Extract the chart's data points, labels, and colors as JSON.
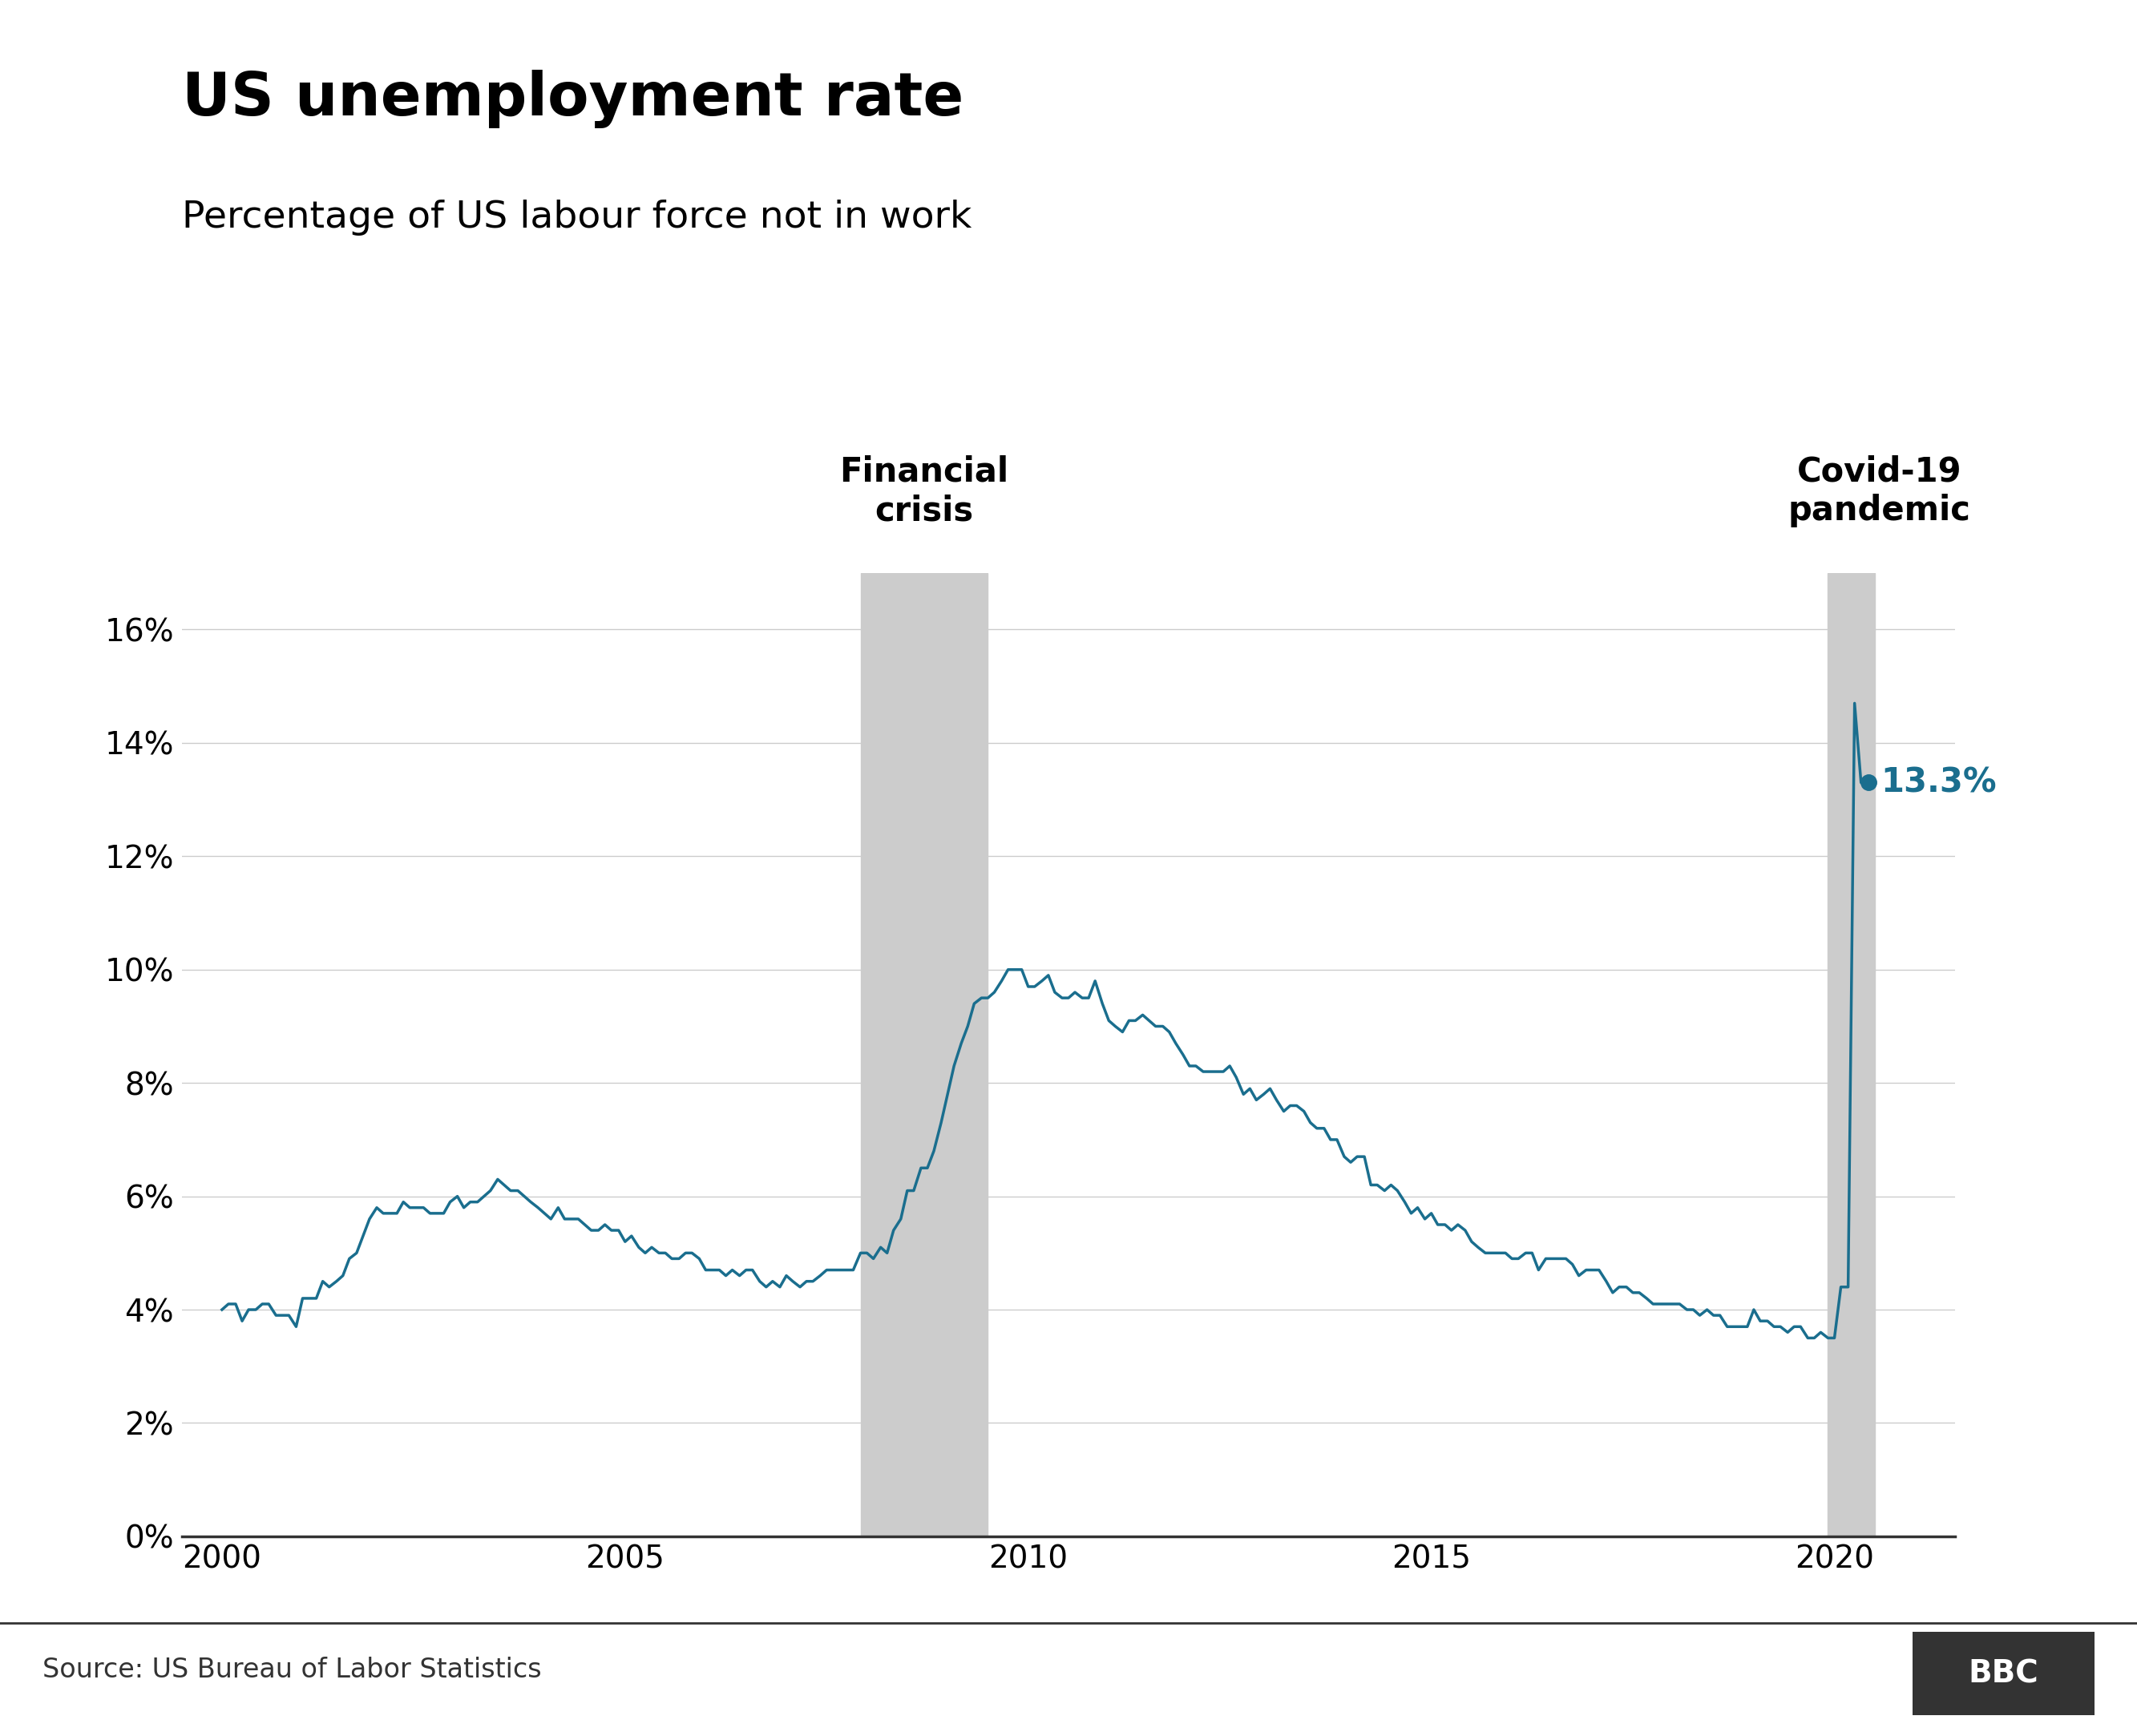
{
  "title": "US unemployment rate",
  "subtitle": "Percentage of US labour force not in work",
  "source": "Source: US Bureau of Labor Statistics",
  "line_color": "#1a6e8e",
  "annotation_color": "#1a6e8e",
  "shading_color": "#cccccc",
  "background_color": "#ffffff",
  "title_fontsize": 54,
  "subtitle_fontsize": 34,
  "annotation_fontsize": 30,
  "tick_fontsize": 28,
  "source_fontsize": 24,
  "financial_crisis_label": "Financial\ncrisis",
  "covid_label": "Covid-19\npandemic",
  "financial_crisis_start": 2007.92,
  "financial_crisis_end": 2009.5,
  "covid_start": 2019.92,
  "covid_end": 2020.5,
  "endpoint_label": "13.3%",
  "ylim": [
    0,
    17
  ],
  "yticks": [
    0,
    2,
    4,
    6,
    8,
    10,
    12,
    14,
    16
  ],
  "xlim": [
    1999.5,
    2021.5
  ],
  "xticks": [
    2000,
    2005,
    2010,
    2015,
    2020
  ],
  "data": {
    "dates": [
      2000.0,
      2000.08,
      2000.17,
      2000.25,
      2000.33,
      2000.42,
      2000.5,
      2000.58,
      2000.67,
      2000.75,
      2000.83,
      2000.92,
      2001.0,
      2001.08,
      2001.17,
      2001.25,
      2001.33,
      2001.42,
      2001.5,
      2001.58,
      2001.67,
      2001.75,
      2001.83,
      2001.92,
      2002.0,
      2002.08,
      2002.17,
      2002.25,
      2002.33,
      2002.42,
      2002.5,
      2002.58,
      2002.67,
      2002.75,
      2002.83,
      2002.92,
      2003.0,
      2003.08,
      2003.17,
      2003.25,
      2003.33,
      2003.42,
      2003.5,
      2003.58,
      2003.67,
      2003.75,
      2003.83,
      2003.92,
      2004.0,
      2004.08,
      2004.17,
      2004.25,
      2004.33,
      2004.42,
      2004.5,
      2004.58,
      2004.67,
      2004.75,
      2004.83,
      2004.92,
      2005.0,
      2005.08,
      2005.17,
      2005.25,
      2005.33,
      2005.42,
      2005.5,
      2005.58,
      2005.67,
      2005.75,
      2005.83,
      2005.92,
      2006.0,
      2006.08,
      2006.17,
      2006.25,
      2006.33,
      2006.42,
      2006.5,
      2006.58,
      2006.67,
      2006.75,
      2006.83,
      2006.92,
      2007.0,
      2007.08,
      2007.17,
      2007.25,
      2007.33,
      2007.42,
      2007.5,
      2007.58,
      2007.67,
      2007.75,
      2007.83,
      2007.92,
      2008.0,
      2008.08,
      2008.17,
      2008.25,
      2008.33,
      2008.42,
      2008.5,
      2008.58,
      2008.67,
      2008.75,
      2008.83,
      2008.92,
      2009.0,
      2009.08,
      2009.17,
      2009.25,
      2009.33,
      2009.42,
      2009.5,
      2009.58,
      2009.67,
      2009.75,
      2009.83,
      2009.92,
      2010.0,
      2010.08,
      2010.17,
      2010.25,
      2010.33,
      2010.42,
      2010.5,
      2010.58,
      2010.67,
      2010.75,
      2010.83,
      2010.92,
      2011.0,
      2011.08,
      2011.17,
      2011.25,
      2011.33,
      2011.42,
      2011.5,
      2011.58,
      2011.67,
      2011.75,
      2011.83,
      2011.92,
      2012.0,
      2012.08,
      2012.17,
      2012.25,
      2012.33,
      2012.42,
      2012.5,
      2012.58,
      2012.67,
      2012.75,
      2012.83,
      2012.92,
      2013.0,
      2013.08,
      2013.17,
      2013.25,
      2013.33,
      2013.42,
      2013.5,
      2013.58,
      2013.67,
      2013.75,
      2013.83,
      2013.92,
      2014.0,
      2014.08,
      2014.17,
      2014.25,
      2014.33,
      2014.42,
      2014.5,
      2014.58,
      2014.67,
      2014.75,
      2014.83,
      2014.92,
      2015.0,
      2015.08,
      2015.17,
      2015.25,
      2015.33,
      2015.42,
      2015.5,
      2015.58,
      2015.67,
      2015.75,
      2015.83,
      2015.92,
      2016.0,
      2016.08,
      2016.17,
      2016.25,
      2016.33,
      2016.42,
      2016.5,
      2016.58,
      2016.67,
      2016.75,
      2016.83,
      2016.92,
      2017.0,
      2017.08,
      2017.17,
      2017.25,
      2017.33,
      2017.42,
      2017.5,
      2017.58,
      2017.67,
      2017.75,
      2017.83,
      2017.92,
      2018.0,
      2018.08,
      2018.17,
      2018.25,
      2018.33,
      2018.42,
      2018.5,
      2018.58,
      2018.67,
      2018.75,
      2018.83,
      2018.92,
      2019.0,
      2019.08,
      2019.17,
      2019.25,
      2019.33,
      2019.42,
      2019.5,
      2019.58,
      2019.67,
      2019.75,
      2019.83,
      2019.92,
      2020.0,
      2020.08,
      2020.17,
      2020.25,
      2020.33,
      2020.42
    ],
    "values": [
      4.0,
      4.1,
      4.1,
      3.8,
      4.0,
      4.0,
      4.1,
      4.1,
      3.9,
      3.9,
      3.9,
      3.7,
      4.2,
      4.2,
      4.2,
      4.5,
      4.4,
      4.5,
      4.6,
      4.9,
      5.0,
      5.3,
      5.6,
      5.8,
      5.7,
      5.7,
      5.7,
      5.9,
      5.8,
      5.8,
      5.8,
      5.7,
      5.7,
      5.7,
      5.9,
      6.0,
      5.8,
      5.9,
      5.9,
      6.0,
      6.1,
      6.3,
      6.2,
      6.1,
      6.1,
      6.0,
      5.9,
      5.8,
      5.7,
      5.6,
      5.8,
      5.6,
      5.6,
      5.6,
      5.5,
      5.4,
      5.4,
      5.5,
      5.4,
      5.4,
      5.2,
      5.3,
      5.1,
      5.0,
      5.1,
      5.0,
      5.0,
      4.9,
      4.9,
      5.0,
      5.0,
      4.9,
      4.7,
      4.7,
      4.7,
      4.6,
      4.7,
      4.6,
      4.7,
      4.7,
      4.5,
      4.4,
      4.5,
      4.4,
      4.6,
      4.5,
      4.4,
      4.5,
      4.5,
      4.6,
      4.7,
      4.7,
      4.7,
      4.7,
      4.7,
      5.0,
      5.0,
      4.9,
      5.1,
      5.0,
      5.4,
      5.6,
      6.1,
      6.1,
      6.5,
      6.5,
      6.8,
      7.3,
      7.8,
      8.3,
      8.7,
      9.0,
      9.4,
      9.5,
      9.5,
      9.6,
      9.8,
      10.0,
      10.0,
      10.0,
      9.7,
      9.7,
      9.8,
      9.9,
      9.6,
      9.5,
      9.5,
      9.6,
      9.5,
      9.5,
      9.8,
      9.4,
      9.1,
      9.0,
      8.9,
      9.1,
      9.1,
      9.2,
      9.1,
      9.0,
      9.0,
      8.9,
      8.7,
      8.5,
      8.3,
      8.3,
      8.2,
      8.2,
      8.2,
      8.2,
      8.3,
      8.1,
      7.8,
      7.9,
      7.7,
      7.8,
      7.9,
      7.7,
      7.5,
      7.6,
      7.6,
      7.5,
      7.3,
      7.2,
      7.2,
      7.0,
      7.0,
      6.7,
      6.6,
      6.7,
      6.7,
      6.2,
      6.2,
      6.1,
      6.2,
      6.1,
      5.9,
      5.7,
      5.8,
      5.6,
      5.7,
      5.5,
      5.5,
      5.4,
      5.5,
      5.4,
      5.2,
      5.1,
      5.0,
      5.0,
      5.0,
      5.0,
      4.9,
      4.9,
      5.0,
      5.0,
      4.7,
      4.9,
      4.9,
      4.9,
      4.9,
      4.8,
      4.6,
      4.7,
      4.7,
      4.7,
      4.5,
      4.3,
      4.4,
      4.4,
      4.3,
      4.3,
      4.2,
      4.1,
      4.1,
      4.1,
      4.1,
      4.1,
      4.0,
      4.0,
      3.9,
      4.0,
      3.9,
      3.9,
      3.7,
      3.7,
      3.7,
      3.7,
      4.0,
      3.8,
      3.8,
      3.7,
      3.7,
      3.6,
      3.7,
      3.7,
      3.5,
      3.5,
      3.6,
      3.5,
      3.5,
      4.4,
      4.4,
      14.7,
      13.3,
      13.3
    ]
  }
}
